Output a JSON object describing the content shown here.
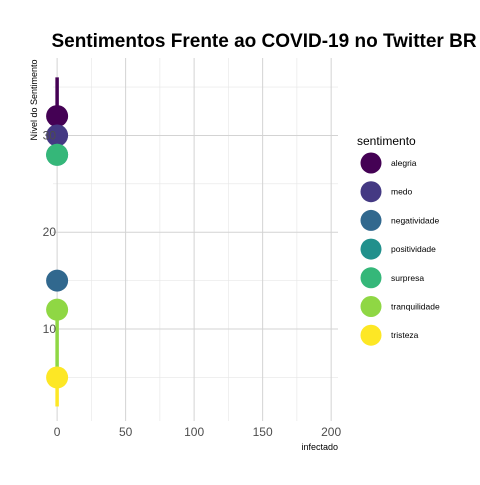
{
  "chart_data": {
    "type": "scatter",
    "title": "Sentimentos Frente ao COVID-19 no Twitter BR",
    "xlabel": "infectado",
    "ylabel": "Nível do Sentimento",
    "xlim": [
      -3,
      205
    ],
    "ylim": [
      0.5,
      38
    ],
    "x_ticks": [
      0,
      50,
      100,
      150,
      200
    ],
    "y_ticks": [
      10,
      20,
      30
    ],
    "grid": true,
    "legend_title": "sentimento",
    "legend_position": "right",
    "series": [
      {
        "name": "alegria",
        "color": "#440154",
        "x": 0,
        "y": 32,
        "y_min": 30,
        "y_max": 36
      },
      {
        "name": "medo",
        "color": "#443983",
        "x": 0,
        "y": 30,
        "y_min": 29,
        "y_max": 31
      },
      {
        "name": "negatividade",
        "color": "#31688E",
        "x": 0,
        "y": 15,
        "y_min": 14,
        "y_max": 16
      },
      {
        "name": "positividade",
        "color": "#21908C",
        "x": 0,
        "y": 28,
        "y_min": 27,
        "y_max": 29
      },
      {
        "name": "surpresa",
        "color": "#35B779",
        "x": 0,
        "y": 28,
        "y_min": 27,
        "y_max": 29
      },
      {
        "name": "tranquilidade",
        "color": "#8FD744",
        "x": 0,
        "y": 12,
        "y_min": 5,
        "y_max": 13
      },
      {
        "name": "tristeza",
        "color": "#FDE725",
        "x": 0,
        "y": 5,
        "y_min": 2,
        "y_max": 6
      }
    ],
    "draw_order": [
      "alegria",
      "medo",
      "negatividade",
      "positividade",
      "surpresa",
      "tranquilidade",
      "tristeza"
    ],
    "point_draw_order": [
      "alegria",
      "medo",
      "positividade",
      "surpresa",
      "negatividade",
      "tranquilidade",
      "tristeza"
    ]
  }
}
